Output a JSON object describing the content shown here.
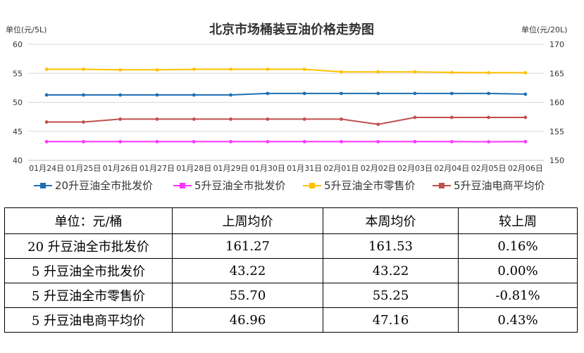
{
  "chart_data": {
    "type": "line",
    "title": "北京市场桶装豆油价格走势图",
    "ylabel_left": "单位(元/5L)",
    "ylabel_right": "单位(元/20L)",
    "ylim_left": [
      40,
      60
    ],
    "ylim_right": [
      150,
      170
    ],
    "yticks_left": [
      40,
      45,
      50,
      55,
      60
    ],
    "yticks_right": [
      150,
      155,
      160,
      165,
      170
    ],
    "grid": true,
    "legend_position": "bottom",
    "categories": [
      "01月24日",
      "01月25日",
      "01月26日",
      "01月27日",
      "01月28日",
      "01月29日",
      "01月30日",
      "01月31日",
      "02月01日",
      "02月02日",
      "02月03日",
      "02月04日",
      "02月05日",
      "02月06日"
    ],
    "series": [
      {
        "name": "20升豆油全市批发价",
        "axis": "right",
        "color": "#1f6fb5",
        "values": [
          161.27,
          161.27,
          161.27,
          161.27,
          161.27,
          161.27,
          161.53,
          161.53,
          161.53,
          161.53,
          161.53,
          161.53,
          161.53,
          161.4
        ]
      },
      {
        "name": "5升豆油全市批发价",
        "axis": "left",
        "color": "#ff33ff",
        "values": [
          43.22,
          43.22,
          43.22,
          43.22,
          43.22,
          43.22,
          43.22,
          43.22,
          43.22,
          43.22,
          43.22,
          43.22,
          43.2,
          43.22
        ]
      },
      {
        "name": "5升豆油全市零售价",
        "axis": "left",
        "color": "#ffc000",
        "values": [
          55.7,
          55.7,
          55.6,
          55.6,
          55.7,
          55.7,
          55.7,
          55.7,
          55.25,
          55.25,
          55.25,
          55.15,
          55.1,
          55.1
        ]
      },
      {
        "name": "5升豆油电商平均价",
        "axis": "left",
        "color": "#c0504d",
        "values": [
          46.6,
          46.6,
          47.1,
          47.1,
          47.1,
          47.1,
          47.1,
          47.1,
          47.1,
          46.2,
          47.4,
          47.4,
          47.4,
          47.4
        ]
      }
    ]
  },
  "table": {
    "header": [
      "单位：元/桶",
      "上周均价",
      "本周均价",
      "较上周"
    ],
    "rows": [
      [
        "20 升豆油全市批发价",
        "161.27",
        "161.53",
        "0.16%"
      ],
      [
        "5 升豆油全市批发价",
        "43.22",
        "43.22",
        "0.00%"
      ],
      [
        "5 升豆油全市零售价",
        "55.70",
        "55.25",
        "-0.81%"
      ],
      [
        "5 升豆油电商平均价",
        "46.96",
        "47.16",
        "0.43%"
      ]
    ]
  }
}
